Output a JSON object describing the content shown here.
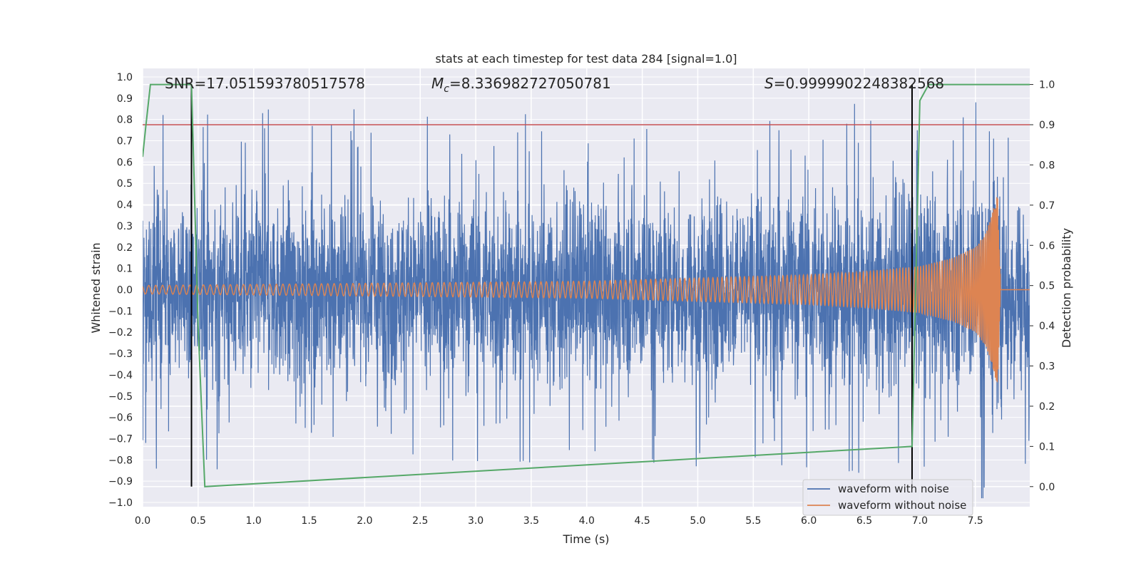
{
  "chart_data": {
    "type": "line",
    "title": "stats at each timestep for test data 284 [signal=1.0]",
    "xlabel": "Time (s)",
    "ylabel": "Whitened strain",
    "ylabel_right": "Detection probability",
    "xlim": [
      0.0,
      7.99
    ],
    "ylim": [
      -1.02,
      1.04
    ],
    "ylim_right": [
      -0.05,
      1.04
    ],
    "x_ticks": [
      "0.0",
      "0.5",
      "1.0",
      "1.5",
      "2.0",
      "2.5",
      "3.0",
      "3.5",
      "4.0",
      "4.5",
      "5.0",
      "5.5",
      "6.0",
      "6.5",
      "7.0",
      "7.5"
    ],
    "y_ticks": [
      "1.0",
      "0.9",
      "0.8",
      "0.7",
      "0.6",
      "0.5",
      "0.4",
      "0.3",
      "0.2",
      "0.1",
      "0.0",
      "−0.1",
      "−0.2",
      "−0.3",
      "−0.4",
      "−0.5",
      "−0.6",
      "−0.7",
      "−0.8",
      "−0.9",
      "−1.0"
    ],
    "y_ticks_right": [
      "1.0",
      "0.9",
      "0.8",
      "0.7",
      "0.6",
      "0.5",
      "0.4",
      "0.3",
      "0.2",
      "0.1",
      "0.0"
    ],
    "annotations": {
      "snr": "SNR=17.051593780517578",
      "mc_symbol": "M",
      "mc_subscript": "c",
      "mc_value": "=8.336982727050781",
      "s_symbol": "S",
      "s_value": "=0.9999902248382568"
    },
    "threshold_right": 0.9,
    "vertical_markers_time": [
      0.44,
      6.93
    ],
    "legend": {
      "position": "lower-right",
      "entries": [
        "waveform with noise",
        "waveform without noise"
      ]
    },
    "grid": true,
    "series": [
      {
        "name": "waveform with noise",
        "color": "#4c72b0",
        "description_samples": "dense noise within approximately ±0.5 with spikes up to 1.0",
        "envelope": {
          "x": [
            0.0,
            1.0,
            2.0,
            3.0,
            4.0,
            5.0,
            6.0,
            7.0,
            7.5,
            7.66,
            7.99
          ],
          "upper": [
            0.55,
            0.55,
            0.55,
            0.55,
            0.55,
            0.55,
            0.57,
            0.6,
            0.65,
            1.0,
            0.5
          ],
          "lower": [
            -0.55,
            -0.55,
            -0.55,
            -0.55,
            -0.55,
            -0.55,
            -0.57,
            -0.6,
            -0.62,
            -0.7,
            -0.5
          ]
        }
      },
      {
        "name": "waveform without noise",
        "color": "#dd8452",
        "envelope": {
          "x": [
            0.0,
            1.0,
            2.0,
            3.0,
            4.0,
            5.0,
            6.0,
            6.5,
            7.0,
            7.3,
            7.5,
            7.6,
            7.7,
            7.73,
            7.99
          ],
          "amplitude": [
            0.02,
            0.025,
            0.03,
            0.035,
            0.04,
            0.055,
            0.07,
            0.085,
            0.11,
            0.15,
            0.2,
            0.27,
            0.45,
            0.0,
            0.0
          ]
        }
      },
      {
        "name": "detection probability",
        "color": "#55a868",
        "axis": "right",
        "x": [
          0.0,
          0.03,
          0.07,
          0.12,
          0.44,
          0.45,
          0.5,
          0.56,
          6.93,
          7.0,
          7.08,
          7.99
        ],
        "y": [
          0.82,
          0.9,
          1.0,
          1.0,
          1.0,
          0.9,
          0.4,
          0.0,
          0.1,
          0.96,
          1.0,
          1.0
        ]
      }
    ]
  }
}
